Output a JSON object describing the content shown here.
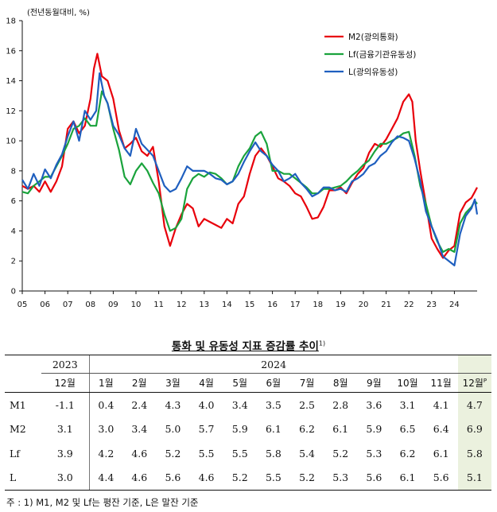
{
  "chart_data": {
    "type": "line",
    "unit_label": "(전년동월대비, %)",
    "ylim": [
      0,
      18
    ],
    "yticks": [
      0,
      2,
      4,
      6,
      8,
      10,
      12,
      14,
      16,
      18
    ],
    "xlim": [
      2005.0,
      2025.0
    ],
    "xtick_labels": [
      "05",
      "06",
      "07",
      "08",
      "09",
      "10",
      "11",
      "12",
      "13",
      "14",
      "15",
      "16",
      "17",
      "18",
      "19",
      "20",
      "21",
      "22",
      "23",
      "24"
    ],
    "grid": false,
    "legend_position": "top-right",
    "series": [
      {
        "name": "M2(광의통화)",
        "color": "#e8000b",
        "points": [
          [
            2005.0,
            7.0
          ],
          [
            2005.25,
            6.8
          ],
          [
            2005.5,
            7.0
          ],
          [
            2005.75,
            6.6
          ],
          [
            2006.0,
            7.3
          ],
          [
            2006.25,
            6.6
          ],
          [
            2006.5,
            7.3
          ],
          [
            2006.75,
            8.3
          ],
          [
            2007.0,
            10.8
          ],
          [
            2007.25,
            11.3
          ],
          [
            2007.5,
            10.5
          ],
          [
            2007.75,
            11.0
          ],
          [
            2008.0,
            12.8
          ],
          [
            2008.15,
            14.8
          ],
          [
            2008.3,
            15.8
          ],
          [
            2008.5,
            14.3
          ],
          [
            2008.75,
            14.0
          ],
          [
            2009.0,
            12.8
          ],
          [
            2009.25,
            10.7
          ],
          [
            2009.5,
            9.5
          ],
          [
            2009.75,
            9.8
          ],
          [
            2010.0,
            10.2
          ],
          [
            2010.25,
            9.3
          ],
          [
            2010.5,
            9.0
          ],
          [
            2010.75,
            9.6
          ],
          [
            2011.0,
            7.3
          ],
          [
            2011.25,
            4.3
          ],
          [
            2011.5,
            3.0
          ],
          [
            2011.75,
            4.2
          ],
          [
            2012.0,
            5.1
          ],
          [
            2012.25,
            5.8
          ],
          [
            2012.5,
            5.5
          ],
          [
            2012.75,
            4.3
          ],
          [
            2013.0,
            4.8
          ],
          [
            2013.25,
            4.6
          ],
          [
            2013.5,
            4.4
          ],
          [
            2013.75,
            4.2
          ],
          [
            2014.0,
            4.8
          ],
          [
            2014.25,
            4.5
          ],
          [
            2014.5,
            5.8
          ],
          [
            2014.75,
            6.3
          ],
          [
            2015.0,
            7.8
          ],
          [
            2015.25,
            9.0
          ],
          [
            2015.5,
            9.5
          ],
          [
            2015.75,
            9.0
          ],
          [
            2016.0,
            8.3
          ],
          [
            2016.25,
            7.5
          ],
          [
            2016.5,
            7.3
          ],
          [
            2016.75,
            7.0
          ],
          [
            2017.0,
            6.5
          ],
          [
            2017.25,
            6.3
          ],
          [
            2017.5,
            5.6
          ],
          [
            2017.75,
            4.8
          ],
          [
            2018.0,
            4.9
          ],
          [
            2018.25,
            5.6
          ],
          [
            2018.5,
            6.7
          ],
          [
            2018.75,
            6.7
          ],
          [
            2019.0,
            6.9
          ],
          [
            2019.25,
            6.5
          ],
          [
            2019.5,
            7.2
          ],
          [
            2019.75,
            7.8
          ],
          [
            2020.0,
            8.2
          ],
          [
            2020.25,
            9.2
          ],
          [
            2020.5,
            9.8
          ],
          [
            2020.75,
            9.6
          ],
          [
            2021.0,
            10.1
          ],
          [
            2021.25,
            10.8
          ],
          [
            2021.5,
            11.5
          ],
          [
            2021.75,
            12.6
          ],
          [
            2022.0,
            13.1
          ],
          [
            2022.15,
            12.6
          ],
          [
            2022.3,
            10.0
          ],
          [
            2022.5,
            8.0
          ],
          [
            2022.75,
            5.8
          ],
          [
            2023.0,
            3.5
          ],
          [
            2023.25,
            2.8
          ],
          [
            2023.5,
            2.2
          ],
          [
            2023.75,
            2.7
          ],
          [
            2024.0,
            3.0
          ],
          [
            2024.25,
            5.2
          ],
          [
            2024.5,
            5.9
          ],
          [
            2024.75,
            6.2
          ],
          [
            2024.9,
            6.6
          ],
          [
            2025.0,
            6.9
          ]
        ]
      },
      {
        "name": "Lf(금융기관유동성)",
        "color": "#1aa33c",
        "points": [
          [
            2005.0,
            6.6
          ],
          [
            2005.25,
            6.5
          ],
          [
            2005.5,
            7.0
          ],
          [
            2005.75,
            7.3
          ],
          [
            2006.0,
            7.6
          ],
          [
            2006.25,
            7.6
          ],
          [
            2006.5,
            8.3
          ],
          [
            2006.75,
            9.0
          ],
          [
            2007.0,
            9.8
          ],
          [
            2007.25,
            10.8
          ],
          [
            2007.5,
            11.0
          ],
          [
            2007.75,
            11.5
          ],
          [
            2008.0,
            11.0
          ],
          [
            2008.25,
            11.0
          ],
          [
            2008.5,
            13.3
          ],
          [
            2008.75,
            12.5
          ],
          [
            2009.0,
            10.8
          ],
          [
            2009.25,
            9.4
          ],
          [
            2009.5,
            7.6
          ],
          [
            2009.75,
            7.1
          ],
          [
            2010.0,
            8.0
          ],
          [
            2010.25,
            8.5
          ],
          [
            2010.5,
            8.0
          ],
          [
            2010.75,
            7.2
          ],
          [
            2011.0,
            6.5
          ],
          [
            2011.25,
            5.1
          ],
          [
            2011.5,
            4.0
          ],
          [
            2011.75,
            4.2
          ],
          [
            2012.0,
            4.8
          ],
          [
            2012.25,
            6.8
          ],
          [
            2012.5,
            7.5
          ],
          [
            2012.75,
            7.8
          ],
          [
            2013.0,
            7.6
          ],
          [
            2013.25,
            7.9
          ],
          [
            2013.5,
            7.8
          ],
          [
            2013.75,
            7.5
          ],
          [
            2014.0,
            7.1
          ],
          [
            2014.25,
            7.3
          ],
          [
            2014.5,
            8.3
          ],
          [
            2014.75,
            9.0
          ],
          [
            2015.0,
            9.5
          ],
          [
            2015.25,
            10.3
          ],
          [
            2015.5,
            10.6
          ],
          [
            2015.75,
            9.8
          ],
          [
            2016.0,
            8.0
          ],
          [
            2016.25,
            8.0
          ],
          [
            2016.5,
            7.8
          ],
          [
            2016.75,
            7.8
          ],
          [
            2017.0,
            7.5
          ],
          [
            2017.25,
            7.2
          ],
          [
            2017.5,
            6.9
          ],
          [
            2017.75,
            6.5
          ],
          [
            2018.0,
            6.5
          ],
          [
            2018.25,
            6.8
          ],
          [
            2018.5,
            6.8
          ],
          [
            2018.75,
            6.9
          ],
          [
            2019.0,
            7.0
          ],
          [
            2019.25,
            7.3
          ],
          [
            2019.5,
            7.7
          ],
          [
            2019.75,
            8.0
          ],
          [
            2020.0,
            8.4
          ],
          [
            2020.25,
            8.7
          ],
          [
            2020.5,
            9.3
          ],
          [
            2020.75,
            9.8
          ],
          [
            2021.0,
            9.8
          ],
          [
            2021.25,
            10.0
          ],
          [
            2021.5,
            10.2
          ],
          [
            2021.75,
            10.5
          ],
          [
            2022.0,
            10.6
          ],
          [
            2022.25,
            9.0
          ],
          [
            2022.5,
            7.0
          ],
          [
            2022.75,
            5.8
          ],
          [
            2023.0,
            4.3
          ],
          [
            2023.25,
            3.3
          ],
          [
            2023.5,
            2.6
          ],
          [
            2023.75,
            2.8
          ],
          [
            2024.0,
            2.6
          ],
          [
            2024.25,
            4.5
          ],
          [
            2024.5,
            5.2
          ],
          [
            2024.75,
            5.6
          ],
          [
            2024.9,
            6.0
          ],
          [
            2025.0,
            5.8
          ]
        ]
      },
      {
        "name": "L(광의유동성)",
        "color": "#1f5fbf",
        "points": [
          [
            2005.0,
            7.4
          ],
          [
            2005.25,
            6.8
          ],
          [
            2005.5,
            7.8
          ],
          [
            2005.75,
            7.0
          ],
          [
            2006.0,
            8.1
          ],
          [
            2006.25,
            7.5
          ],
          [
            2006.5,
            8.4
          ],
          [
            2006.75,
            9.1
          ],
          [
            2007.0,
            10.3
          ],
          [
            2007.25,
            11.3
          ],
          [
            2007.5,
            10.0
          ],
          [
            2007.75,
            12.0
          ],
          [
            2008.0,
            11.4
          ],
          [
            2008.25,
            12.0
          ],
          [
            2008.4,
            14.5
          ],
          [
            2008.6,
            13.0
          ],
          [
            2008.75,
            12.5
          ],
          [
            2009.0,
            11.0
          ],
          [
            2009.25,
            10.4
          ],
          [
            2009.5,
            9.5
          ],
          [
            2009.75,
            9.0
          ],
          [
            2010.0,
            10.8
          ],
          [
            2010.25,
            9.8
          ],
          [
            2010.5,
            9.4
          ],
          [
            2010.75,
            9.0
          ],
          [
            2011.0,
            8.0
          ],
          [
            2011.25,
            7.0
          ],
          [
            2011.5,
            6.6
          ],
          [
            2011.75,
            6.8
          ],
          [
            2012.0,
            7.5
          ],
          [
            2012.25,
            8.3
          ],
          [
            2012.5,
            8.0
          ],
          [
            2012.75,
            8.0
          ],
          [
            2013.0,
            8.0
          ],
          [
            2013.25,
            7.8
          ],
          [
            2013.5,
            7.5
          ],
          [
            2013.75,
            7.4
          ],
          [
            2014.0,
            7.1
          ],
          [
            2014.25,
            7.3
          ],
          [
            2014.5,
            7.8
          ],
          [
            2014.75,
            8.6
          ],
          [
            2015.0,
            9.3
          ],
          [
            2015.25,
            9.9
          ],
          [
            2015.5,
            9.3
          ],
          [
            2015.75,
            9.0
          ],
          [
            2016.0,
            8.4
          ],
          [
            2016.25,
            8.0
          ],
          [
            2016.5,
            7.3
          ],
          [
            2016.75,
            7.5
          ],
          [
            2017.0,
            7.8
          ],
          [
            2017.25,
            7.2
          ],
          [
            2017.5,
            6.8
          ],
          [
            2017.75,
            6.3
          ],
          [
            2018.0,
            6.5
          ],
          [
            2018.25,
            6.9
          ],
          [
            2018.5,
            6.9
          ],
          [
            2018.75,
            6.7
          ],
          [
            2019.0,
            6.8
          ],
          [
            2019.25,
            6.6
          ],
          [
            2019.5,
            7.3
          ],
          [
            2019.75,
            7.5
          ],
          [
            2020.0,
            7.8
          ],
          [
            2020.25,
            8.3
          ],
          [
            2020.5,
            8.5
          ],
          [
            2020.75,
            9.0
          ],
          [
            2021.0,
            9.3
          ],
          [
            2021.25,
            9.9
          ],
          [
            2021.5,
            10.3
          ],
          [
            2021.75,
            10.2
          ],
          [
            2022.0,
            10.0
          ],
          [
            2022.25,
            8.8
          ],
          [
            2022.5,
            7.3
          ],
          [
            2022.75,
            5.3
          ],
          [
            2023.0,
            4.3
          ],
          [
            2023.25,
            3.4
          ],
          [
            2023.5,
            2.3
          ],
          [
            2023.75,
            2.0
          ],
          [
            2024.0,
            1.7
          ],
          [
            2024.25,
            3.8
          ],
          [
            2024.5,
            5.0
          ],
          [
            2024.75,
            5.5
          ],
          [
            2024.9,
            6.1
          ],
          [
            2025.0,
            5.1
          ]
        ]
      }
    ]
  },
  "table": {
    "title": "통화 및 유동성 지표 증감률 추이",
    "title_sup": "1)",
    "years": [
      "2023",
      "2024"
    ],
    "months": [
      "12월",
      "1월",
      "2월",
      "3월",
      "4월",
      "5월",
      "6월",
      "7월",
      "8월",
      "9월",
      "10월",
      "11월",
      "12월"
    ],
    "last_month_sup": "P",
    "rows": [
      {
        "label": "M1",
        "values": [
          "-1.1",
          "0.4",
          "2.4",
          "4.3",
          "4.0",
          "3.4",
          "3.5",
          "2.5",
          "2.8",
          "3.6",
          "3.1",
          "4.1",
          "4.7"
        ]
      },
      {
        "label": "M2",
        "values": [
          "3.1",
          "3.0",
          "3.4",
          "5.0",
          "5.7",
          "5.9",
          "6.1",
          "6.2",
          "6.1",
          "5.9",
          "6.5",
          "6.4",
          "6.9"
        ]
      },
      {
        "label": "Lf",
        "values": [
          "3.9",
          "4.2",
          "4.6",
          "5.2",
          "5.5",
          "5.5",
          "5.8",
          "5.4",
          "5.2",
          "5.3",
          "6.2",
          "6.1",
          "5.8"
        ]
      },
      {
        "label": "L",
        "values": [
          "3.0",
          "4.4",
          "4.6",
          "5.6",
          "4.6",
          "5.2",
          "5.5",
          "5.2",
          "5.3",
          "5.6",
          "6.1",
          "5.6",
          "5.1"
        ]
      }
    ],
    "highlight_color": "#ebf1de"
  },
  "footnote": "주 : 1) M1, M2 및 Lf는 평잔 기준, L은 말잔 기준"
}
